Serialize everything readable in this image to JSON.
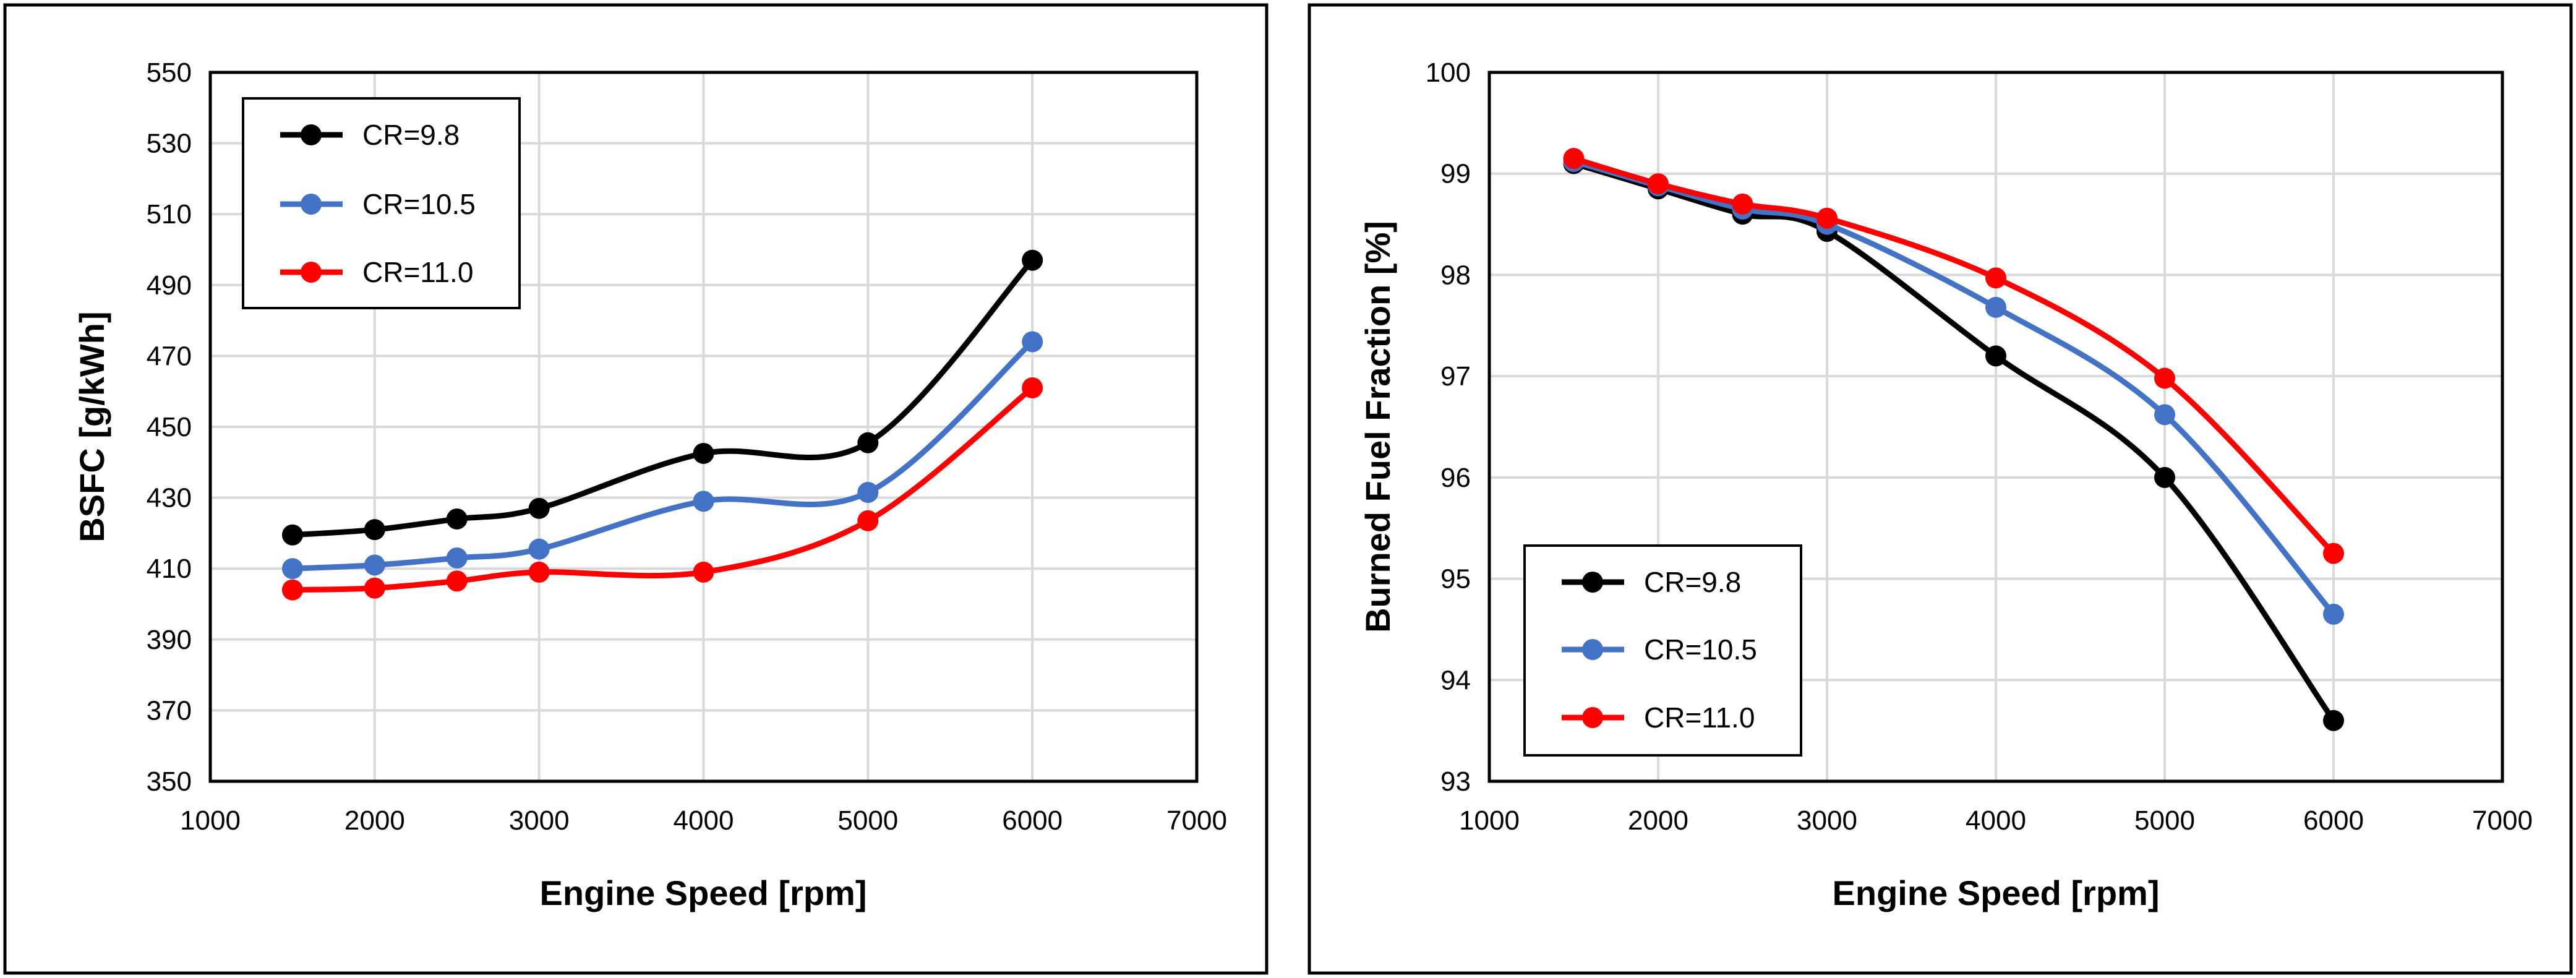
{
  "chart_data": [
    {
      "type": "line",
      "xlabel": "Engine Speed [rpm]",
      "ylabel": "BSFC [g/kWh]",
      "xlim": [
        1000,
        7000
      ],
      "ylim": [
        350,
        550
      ],
      "x_ticks": [
        1000,
        2000,
        3000,
        4000,
        5000,
        6000,
        7000
      ],
      "y_ticks": [
        350,
        370,
        390,
        410,
        430,
        450,
        470,
        490,
        510,
        530,
        550
      ],
      "grid": true,
      "legend_position": "top-left",
      "x": [
        1500,
        2000,
        2500,
        3000,
        4000,
        5000,
        6000
      ],
      "series": [
        {
          "name": "CR=9.8",
          "color": "#000000",
          "values": [
            419.5,
            421,
            424,
            427,
            442.5,
            445.5,
            497
          ]
        },
        {
          "name": "CR=10.5",
          "color": "#4472c4",
          "values": [
            410,
            411,
            413,
            415.5,
            429,
            431.5,
            474
          ]
        },
        {
          "name": "CR=11.0",
          "color": "#ff0000",
          "values": [
            404,
            404.5,
            406.5,
            409,
            409,
            423.5,
            461
          ]
        }
      ]
    },
    {
      "type": "line",
      "xlabel": "Engine Speed [rpm]",
      "ylabel": "Burned Fuel Fraction [%]",
      "xlim": [
        1000,
        7000
      ],
      "ylim": [
        93,
        100
      ],
      "x_ticks": [
        1000,
        2000,
        3000,
        4000,
        5000,
        6000,
        7000
      ],
      "y_ticks": [
        93,
        94,
        95,
        96,
        97,
        98,
        99,
        100
      ],
      "grid": true,
      "legend_position": "bottom-left",
      "x": [
        1500,
        2000,
        2500,
        3000,
        4000,
        5000,
        6000
      ],
      "series": [
        {
          "name": "CR=9.8",
          "color": "#000000",
          "values": [
            99.1,
            98.85,
            98.6,
            98.43,
            97.2,
            96,
            93.6
          ]
        },
        {
          "name": "CR=10.5",
          "color": "#4472c4",
          "values": [
            99.12,
            98.88,
            98.65,
            98.5,
            97.68,
            96.62,
            94.65
          ]
        },
        {
          "name": "CR=11.0",
          "color": "#ff0000",
          "values": [
            99.15,
            98.9,
            98.7,
            98.56,
            97.97,
            96.98,
            95.25
          ]
        }
      ]
    }
  ]
}
